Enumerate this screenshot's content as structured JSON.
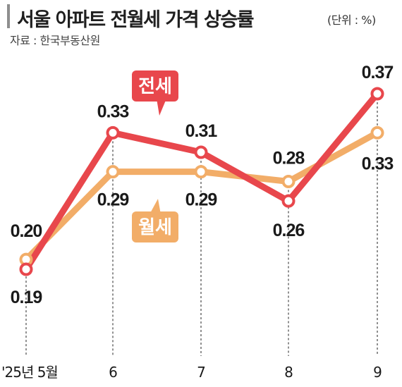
{
  "header": {
    "title": "서울 아파트 전월세 가격 상승률",
    "unit": "(단위 : %)",
    "source": "자료 : 한국부동산원"
  },
  "chart_data": {
    "type": "line",
    "title": "서울 아파트 전월세 가격 상승률",
    "unit": "(단위 : %)",
    "categories": [
      "'25년 5월",
      "6",
      "7",
      "8",
      "9"
    ],
    "series": [
      {
        "name": "전세",
        "color": "#e8474c",
        "values": [
          0.19,
          0.33,
          0.31,
          0.26,
          0.37
        ]
      },
      {
        "name": "월세",
        "color": "#f2ad68",
        "values": [
          0.2,
          0.29,
          0.29,
          0.28,
          0.33
        ]
      }
    ],
    "ylim": [
      0.15,
      0.4
    ],
    "grid": false,
    "legend": "callout labels on lines"
  }
}
